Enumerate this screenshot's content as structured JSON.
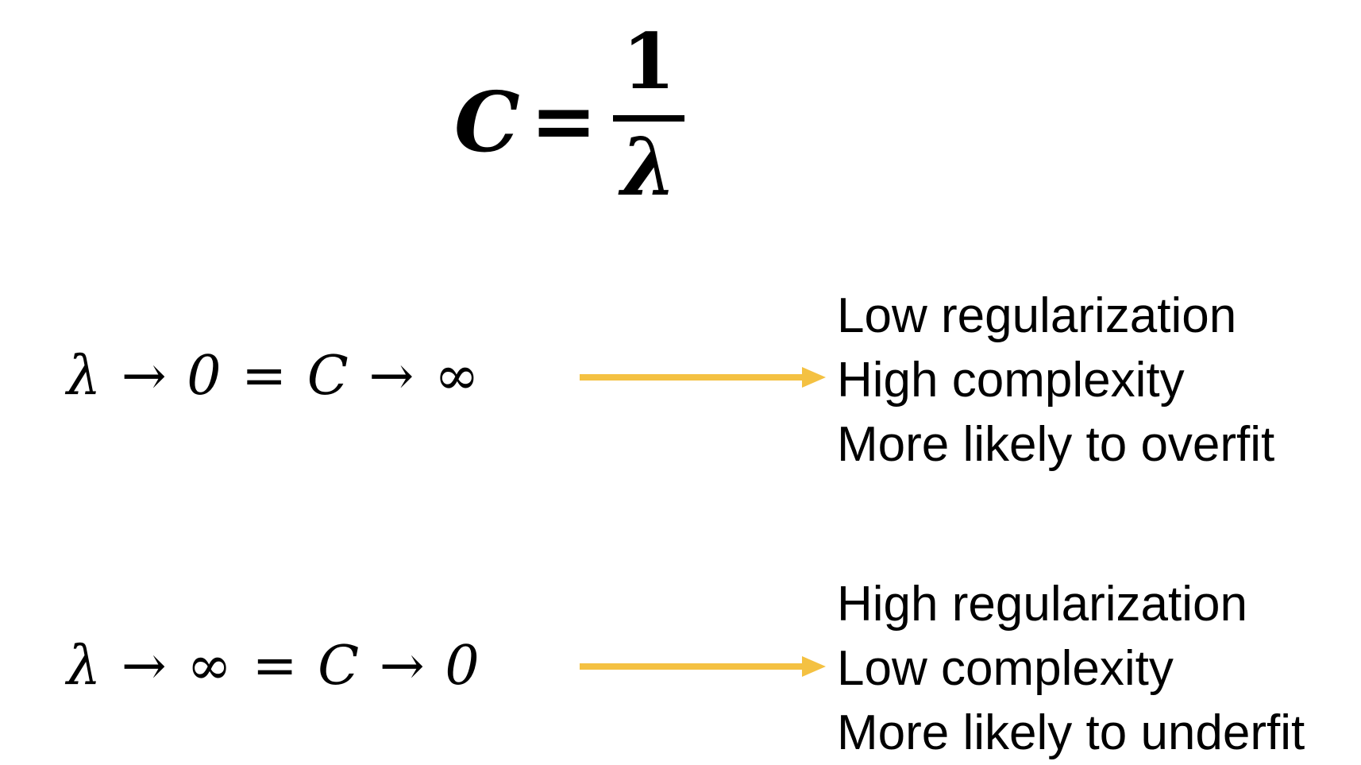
{
  "formula": {
    "lhs": "C",
    "equals": "=",
    "numerator": "1",
    "denominator": "λ"
  },
  "rows": [
    {
      "expression": "λ → 0 = C → ∞",
      "lines": [
        "Low regularization",
        "High complexity",
        "More likely to overfit"
      ]
    },
    {
      "expression": "λ → ∞ = C → 0",
      "lines": [
        "High regularization",
        "Low complexity",
        "More likely to underfit"
      ]
    }
  ],
  "colors": {
    "arrow": "#F4C142",
    "text": "#000000",
    "background": "#FFFFFF"
  }
}
